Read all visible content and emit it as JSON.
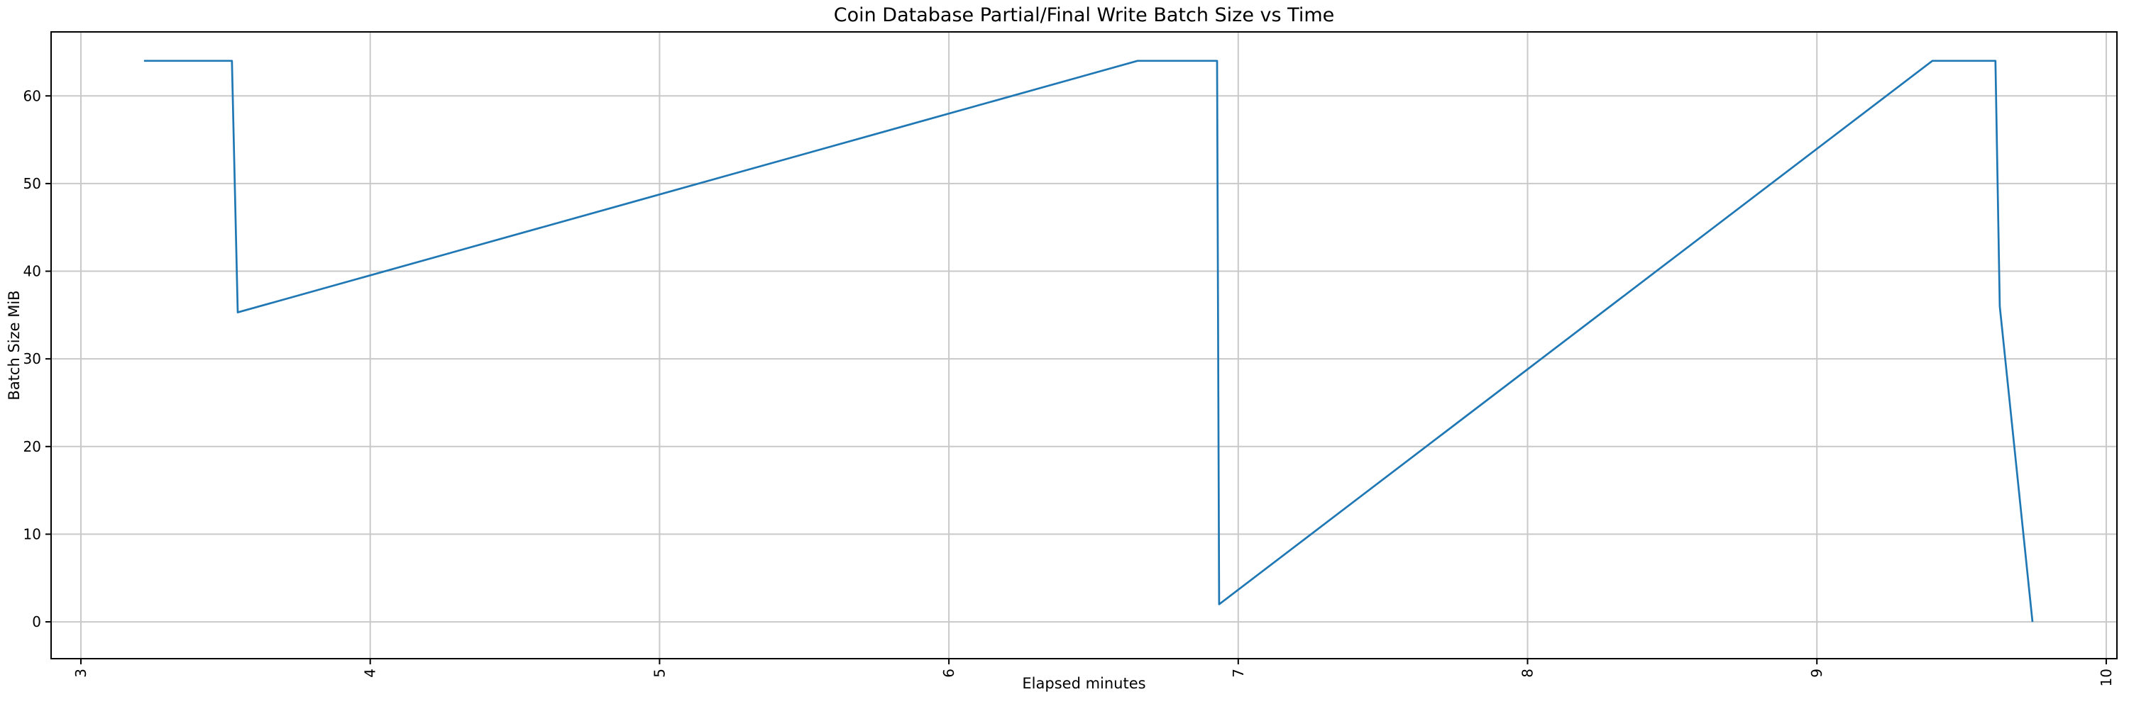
{
  "figure": {
    "background": "#ffffff"
  },
  "chart_data": {
    "type": "line",
    "title": "Coin Database Partial/Final Write Batch Size vs Time",
    "xlabel": "Elapsed minutes",
    "ylabel": "Batch Size MiB",
    "xlim": [
      2.897,
      10.037
    ],
    "ylim": [
      -4.2,
      67.3
    ],
    "x_ticks": [
      3,
      4,
      5,
      6,
      7,
      8,
      9,
      10
    ],
    "y_ticks": [
      0,
      10,
      20,
      30,
      40,
      50,
      60
    ],
    "x_tick_rotation_deg": 90,
    "grid": true,
    "legend": "none",
    "colors": {
      "line": "#1f77b4",
      "grid": "#c9c9c9",
      "spine": "#000000",
      "text": "#000000",
      "background": "#ffffff"
    },
    "series": [
      {
        "name": "batch-size-mib",
        "points": [
          [
            3.218,
            64
          ],
          [
            3.522,
            64
          ],
          [
            3.542,
            35.3
          ],
          [
            6.652,
            64
          ],
          [
            6.927,
            64
          ],
          [
            6.934,
            2
          ],
          [
            9.399,
            64
          ],
          [
            9.617,
            64
          ],
          [
            9.632,
            36
          ],
          [
            9.745,
            0
          ]
        ]
      }
    ]
  }
}
